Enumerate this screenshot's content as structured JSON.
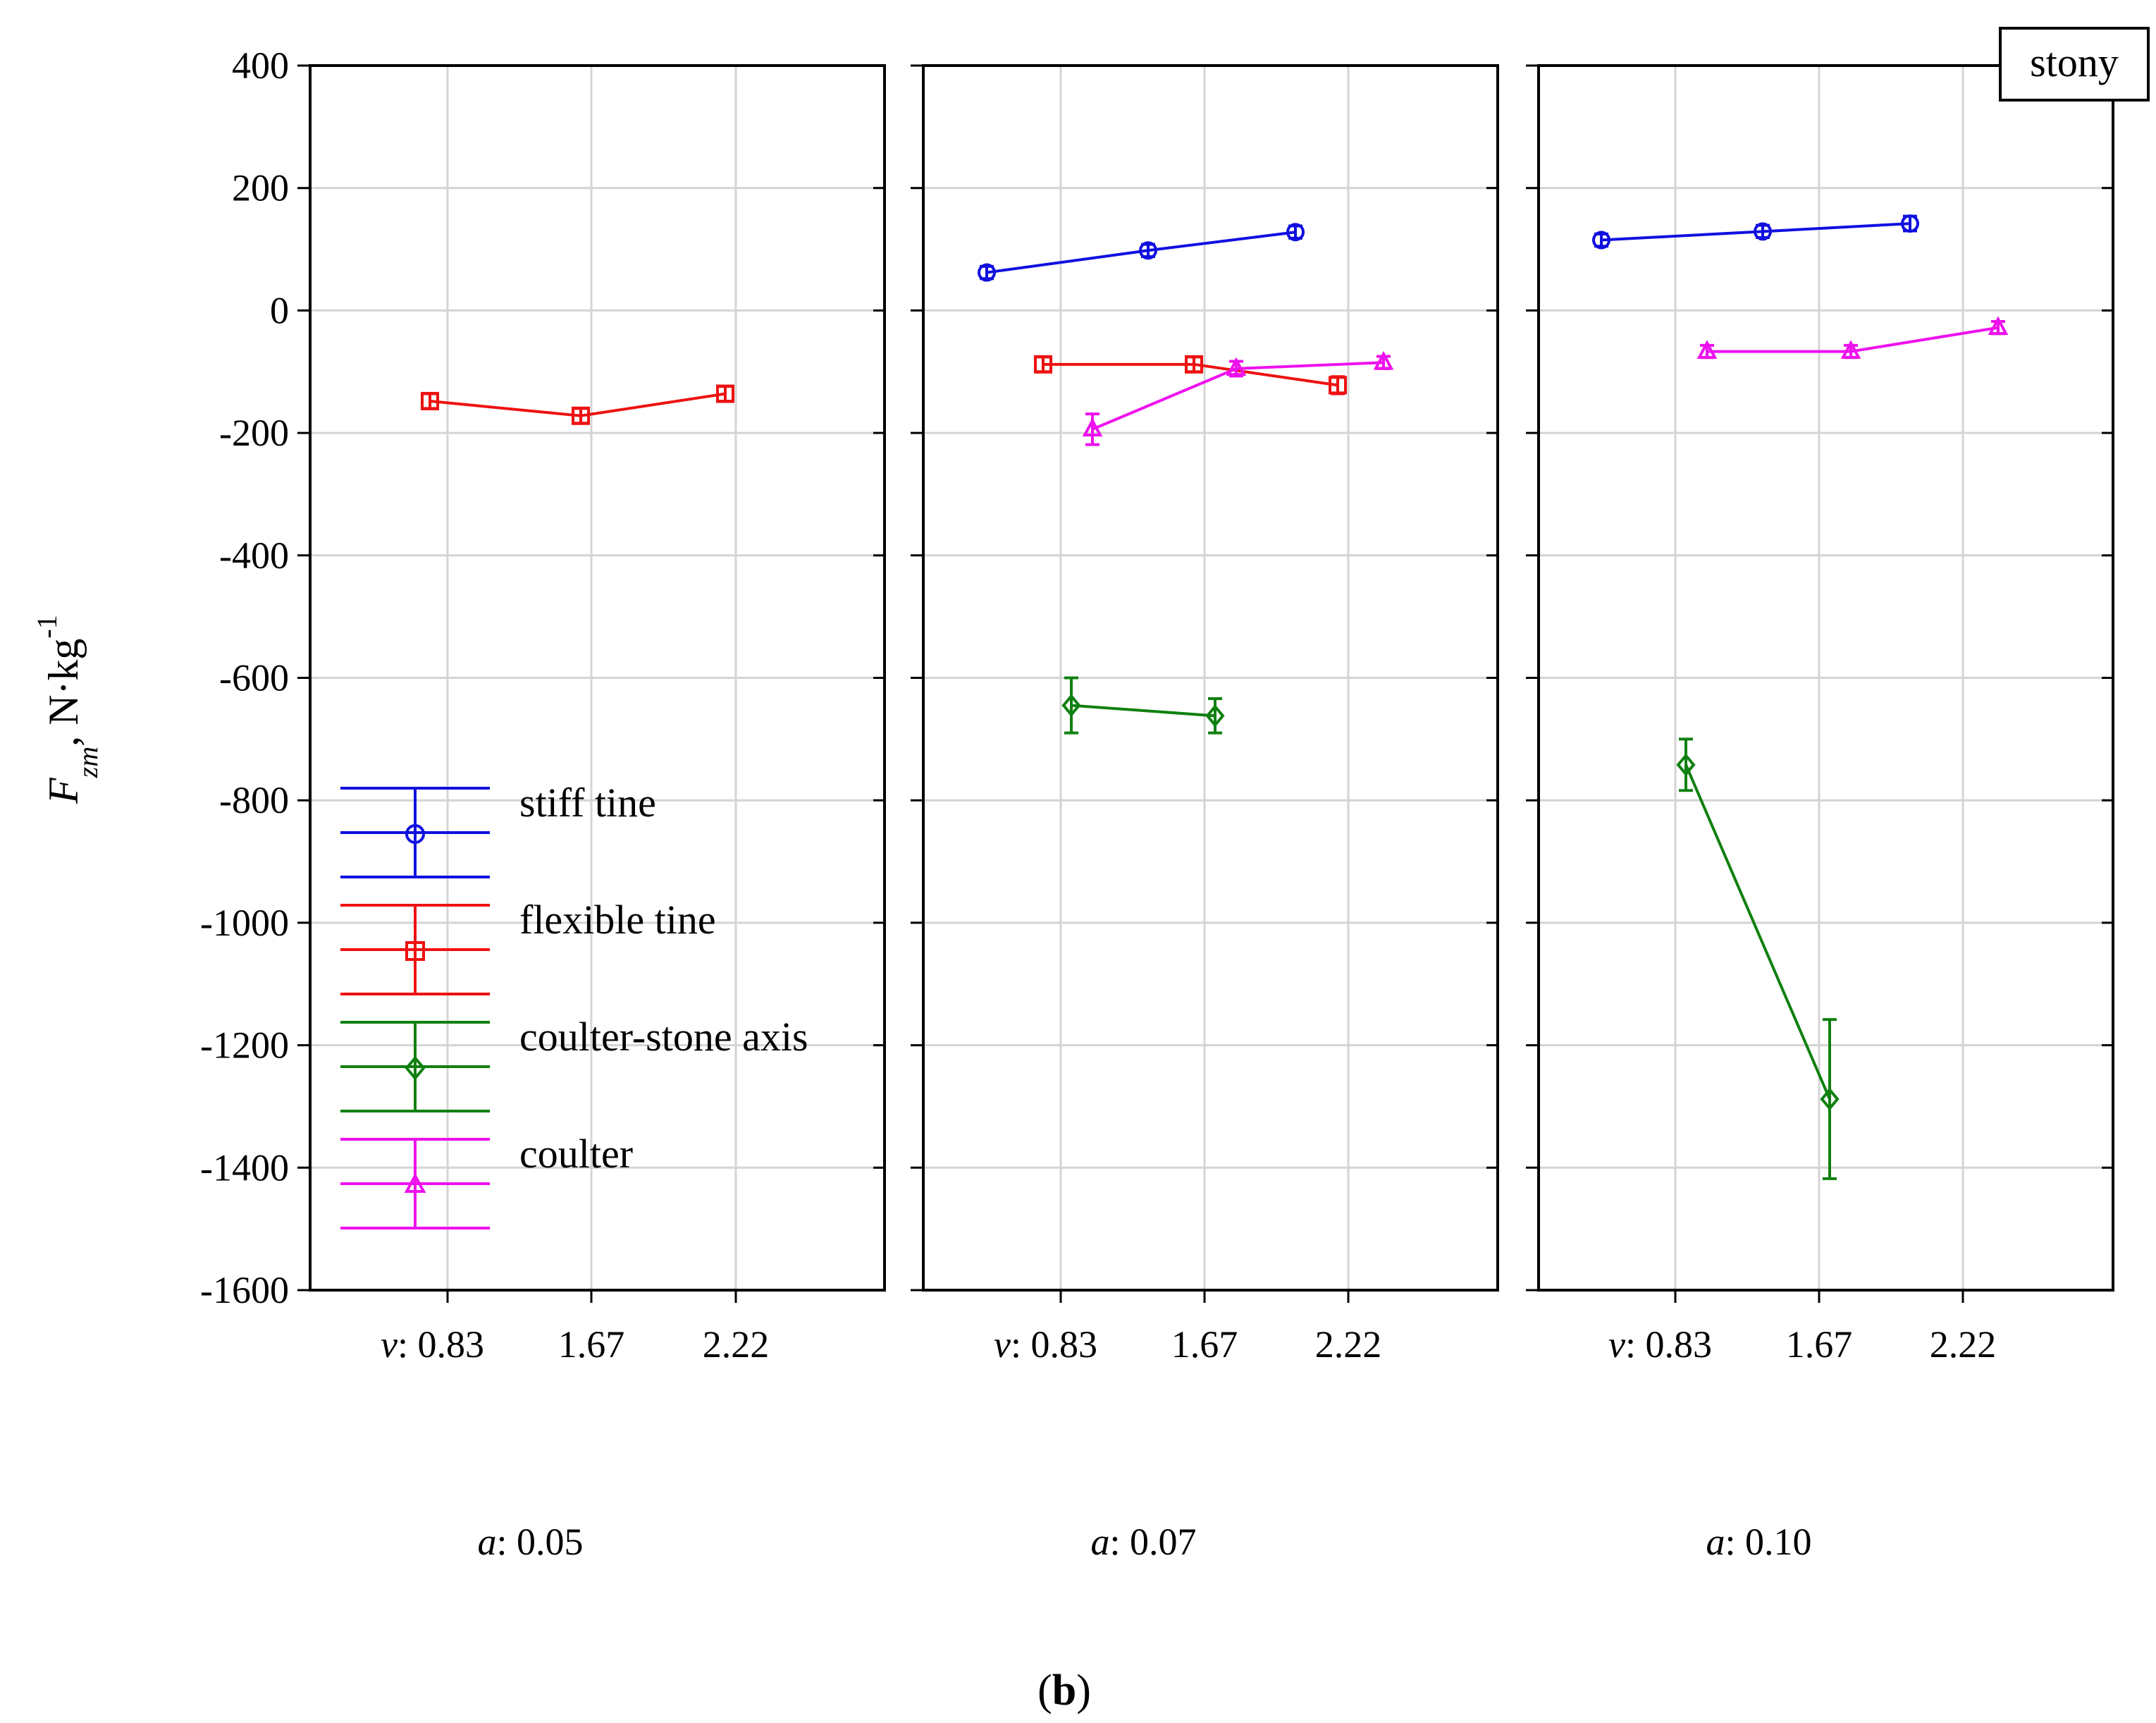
{
  "chart_data": {
    "type": "line",
    "ylabel": {
      "main": "F",
      "sub": "zm",
      "unit": ", N·kg",
      "sup": "-1"
    },
    "ylim": [
      -1600,
      400
    ],
    "yticks": [
      400,
      200,
      0,
      -200,
      -400,
      -600,
      -800,
      -1000,
      -1200,
      -1400,
      -1600
    ],
    "grid": true,
    "x_label_prefix": "v",
    "categories": [
      "0.83",
      "1.67",
      "2.22"
    ],
    "corner_label": "stony",
    "caption": {
      "open": "(",
      "bold": "b",
      "close": ")"
    },
    "legend": [
      {
        "name": "stiff tine",
        "color": "#1010e0",
        "marker": "circle"
      },
      {
        "name": "flexible tine",
        "color": "#ee1111",
        "marker": "square"
      },
      {
        "name": "coulter-stone axis",
        "color": "#108010",
        "marker": "diamond"
      },
      {
        "name": "coulter",
        "color": "#ee11ee",
        "marker": "triangle"
      }
    ],
    "panels": [
      {
        "a_prefix": "a",
        "label": "0.05",
        "series": [
          {
            "name": "flexible tine",
            "values": [
              -148,
              -172,
              -136
            ],
            "errors": [
              12,
              12,
              12
            ]
          }
        ]
      },
      {
        "a_prefix": "a",
        "label": "0.07",
        "series": [
          {
            "name": "stiff tine",
            "values": [
              62,
              98,
              128
            ],
            "errors": [
              10,
              10,
              10
            ]
          },
          {
            "name": "flexible tine",
            "values": [
              -88,
              -88,
              -122
            ],
            "errors": [
              12,
              12,
              14
            ]
          },
          {
            "name": "coulter-stone axis",
            "values": [
              -645,
              -662,
              null
            ],
            "errors": [
              45,
              28,
              null
            ]
          },
          {
            "name": "coulter",
            "values": [
              -194,
              -95,
              -85
            ],
            "errors": [
              25,
              12,
              10
            ]
          }
        ]
      },
      {
        "a_prefix": "a",
        "label": "0.10",
        "series": [
          {
            "name": "stiff tine",
            "values": [
              115,
              129,
              142
            ],
            "errors": [
              10,
              10,
              12
            ]
          },
          {
            "name": "coulter-stone axis",
            "values": [
              -742,
              -1288,
              null
            ],
            "errors": [
              42,
              130,
              null
            ]
          },
          {
            "name": "coulter",
            "values": [
              -67,
              -67,
              -28
            ],
            "errors": [
              10,
              10,
              10
            ]
          }
        ]
      }
    ]
  }
}
